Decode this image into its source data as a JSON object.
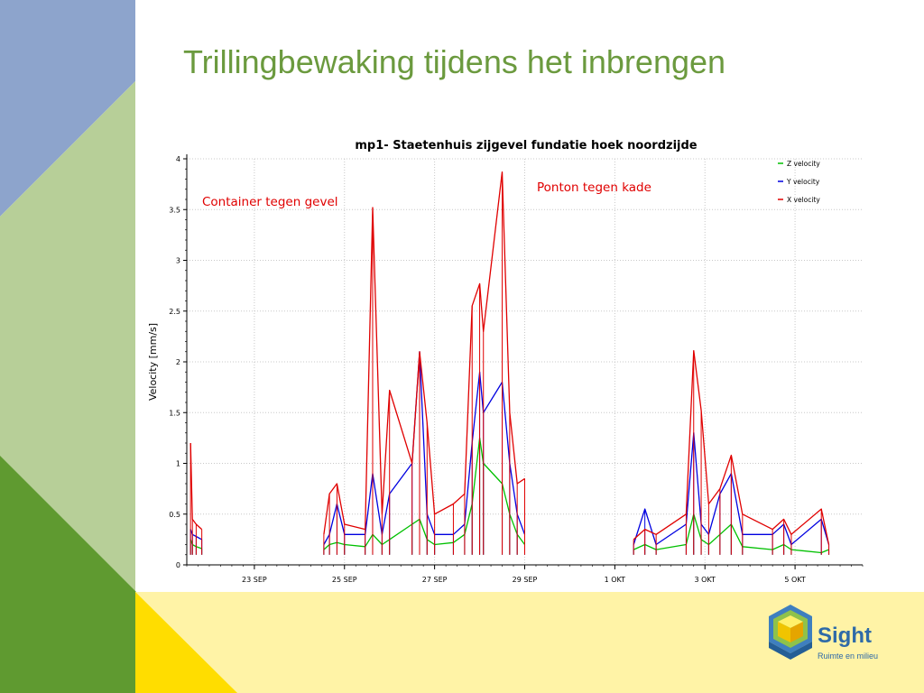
{
  "slide": {
    "title": "Trillingbewaking tijdens het inbrengen",
    "colors": {
      "title": "#6b9a3e",
      "blue": "#8da4cc",
      "lightgreen": "#b7cf98",
      "darkgreen": "#5f9a30",
      "yellow": "#fff3a6",
      "gold": "#ffdd00"
    }
  },
  "logo": {
    "name": "Sight",
    "tagline": "Ruimte en milieu",
    "icon": "hexagon-cube-logo-icon"
  },
  "chart_data": {
    "type": "line",
    "title": "mp1- Staetenhuis zijgevel fundatie hoek noordzijde",
    "xlabel": "",
    "ylabel": "Velocity [mm/s]",
    "ylim": [
      0,
      4
    ],
    "xlim": [
      "2010-09-21T12:00",
      "2010-10-06T12:00"
    ],
    "y_ticks": [
      "0",
      "0.5",
      "1",
      "1.5",
      "2",
      "2.5",
      "3",
      "3.5",
      "4"
    ],
    "x_ticks": [
      {
        "label": "23 SEP",
        "at": "2010-09-23"
      },
      {
        "label": "25 SEP",
        "at": "2010-09-25"
      },
      {
        "label": "27 SEP",
        "at": "2010-09-27"
      },
      {
        "label": "29 SEP",
        "at": "2010-09-29"
      },
      {
        "label": "1 OKT",
        "at": "2010-10-01"
      },
      {
        "label": "3 OKT",
        "at": "2010-10-03"
      },
      {
        "label": "5 OKT",
        "at": "2010-10-05"
      }
    ],
    "grid": true,
    "legend_position": "top-right",
    "annotations": [
      {
        "text": "Container tegen gevel",
        "color": "#e00000"
      },
      {
        "text": "Ponton tegen kade",
        "color": "#e00000"
      }
    ],
    "series": [
      {
        "name": "Z velocity",
        "color": "#00c000",
        "points": [
          [
            "2010-09-21T14:00",
            0.25
          ],
          [
            "2010-09-21T15:00",
            0.2
          ],
          [
            "2010-09-21T17:00",
            0.18
          ],
          [
            "2010-09-21T20:00",
            0.16
          ],
          [
            "2010-09-24T13:00",
            0.15
          ],
          [
            "2010-09-24T16:00",
            0.2
          ],
          [
            "2010-09-24T20:00",
            0.22
          ],
          [
            "2010-09-25T00:00",
            0.2
          ],
          [
            "2010-09-25T11:00",
            0.18
          ],
          [
            "2010-09-25T15:00",
            0.3
          ],
          [
            "2010-09-25T20:00",
            0.2
          ],
          [
            "2010-09-26T00:00",
            0.25
          ],
          [
            "2010-09-26T12:00",
            0.4
          ],
          [
            "2010-09-26T16:00",
            0.45
          ],
          [
            "2010-09-26T20:00",
            0.25
          ],
          [
            "2010-09-27T00:00",
            0.2
          ],
          [
            "2010-09-27T10:00",
            0.22
          ],
          [
            "2010-09-27T16:00",
            0.3
          ],
          [
            "2010-09-27T20:00",
            0.6
          ],
          [
            "2010-09-28T00:00",
            1.25
          ],
          [
            "2010-09-28T02:00",
            1.0
          ],
          [
            "2010-09-28T12:00",
            0.8
          ],
          [
            "2010-09-28T16:00",
            0.5
          ],
          [
            "2010-09-28T20:00",
            0.3
          ],
          [
            "2010-09-29T00:00",
            0.2
          ],
          [
            "2010-10-01T10:00",
            0.15
          ],
          [
            "2010-10-01T16:00",
            0.2
          ],
          [
            "2010-10-01T22:00",
            0.15
          ],
          [
            "2010-10-02T14:00",
            0.2
          ],
          [
            "2010-10-02T18:00",
            0.5
          ],
          [
            "2010-10-02T22:00",
            0.25
          ],
          [
            "2010-10-03T02:00",
            0.2
          ],
          [
            "2010-10-03T08:00",
            0.3
          ],
          [
            "2010-10-03T14:00",
            0.4
          ],
          [
            "2010-10-03T20:00",
            0.18
          ],
          [
            "2010-10-04T12:00",
            0.15
          ],
          [
            "2010-10-04T18:00",
            0.2
          ],
          [
            "2010-10-04T22:00",
            0.15
          ],
          [
            "2010-10-05T14:00",
            0.12
          ],
          [
            "2010-10-05T18:00",
            0.15
          ]
        ]
      },
      {
        "name": "Y velocity",
        "color": "#0000e0",
        "points": [
          [
            "2010-09-21T14:00",
            0.35
          ],
          [
            "2010-09-21T15:00",
            0.3
          ],
          [
            "2010-09-21T17:00",
            0.28
          ],
          [
            "2010-09-21T20:00",
            0.25
          ],
          [
            "2010-09-24T13:00",
            0.2
          ],
          [
            "2010-09-24T16:00",
            0.3
          ],
          [
            "2010-09-24T20:00",
            0.6
          ],
          [
            "2010-09-25T00:00",
            0.3
          ],
          [
            "2010-09-25T11:00",
            0.3
          ],
          [
            "2010-09-25T15:00",
            0.9
          ],
          [
            "2010-09-25T20:00",
            0.3
          ],
          [
            "2010-09-26T00:00",
            0.7
          ],
          [
            "2010-09-26T12:00",
            1.0
          ],
          [
            "2010-09-26T16:00",
            2.1
          ],
          [
            "2010-09-26T20:00",
            0.5
          ],
          [
            "2010-09-27T00:00",
            0.3
          ],
          [
            "2010-09-27T10:00",
            0.3
          ],
          [
            "2010-09-27T16:00",
            0.4
          ],
          [
            "2010-09-27T20:00",
            1.2
          ],
          [
            "2010-09-28T00:00",
            1.9
          ],
          [
            "2010-09-28T02:00",
            1.5
          ],
          [
            "2010-09-28T12:00",
            1.8
          ],
          [
            "2010-09-28T16:00",
            1.0
          ],
          [
            "2010-09-28T20:00",
            0.5
          ],
          [
            "2010-09-29T00:00",
            0.3
          ],
          [
            "2010-10-01T10:00",
            0.2
          ],
          [
            "2010-10-01T16:00",
            0.55
          ],
          [
            "2010-10-01T22:00",
            0.2
          ],
          [
            "2010-10-02T14:00",
            0.4
          ],
          [
            "2010-10-02T18:00",
            1.3
          ],
          [
            "2010-10-02T22:00",
            0.4
          ],
          [
            "2010-10-03T02:00",
            0.3
          ],
          [
            "2010-10-03T08:00",
            0.7
          ],
          [
            "2010-10-03T14:00",
            0.9
          ],
          [
            "2010-10-03T20:00",
            0.3
          ],
          [
            "2010-10-04T12:00",
            0.3
          ],
          [
            "2010-10-04T18:00",
            0.4
          ],
          [
            "2010-10-04T22:00",
            0.2
          ],
          [
            "2010-10-05T14:00",
            0.45
          ],
          [
            "2010-10-05T18:00",
            0.2
          ]
        ]
      },
      {
        "name": "X velocity",
        "color": "#e00000",
        "points": [
          [
            "2010-09-21T14:00",
            1.2
          ],
          [
            "2010-09-21T15:00",
            0.45
          ],
          [
            "2010-09-21T17:00",
            0.4
          ],
          [
            "2010-09-21T20:00",
            0.35
          ],
          [
            "2010-09-24T13:00",
            0.3
          ],
          [
            "2010-09-24T16:00",
            0.7
          ],
          [
            "2010-09-24T20:00",
            0.8
          ],
          [
            "2010-09-25T00:00",
            0.4
          ],
          [
            "2010-09-25T11:00",
            0.35
          ],
          [
            "2010-09-25T15:00",
            3.52
          ],
          [
            "2010-09-25T20:00",
            0.5
          ],
          [
            "2010-09-26T00:00",
            1.72
          ],
          [
            "2010-09-26T12:00",
            1.0
          ],
          [
            "2010-09-26T16:00",
            2.1
          ],
          [
            "2010-09-26T20:00",
            1.4
          ],
          [
            "2010-09-27T00:00",
            0.5
          ],
          [
            "2010-09-27T10:00",
            0.6
          ],
          [
            "2010-09-27T16:00",
            0.7
          ],
          [
            "2010-09-27T20:00",
            2.55
          ],
          [
            "2010-09-28T00:00",
            2.77
          ],
          [
            "2010-09-28T02:00",
            2.3
          ],
          [
            "2010-09-28T12:00",
            3.87
          ],
          [
            "2010-09-28T16:00",
            1.5
          ],
          [
            "2010-09-28T20:00",
            0.8
          ],
          [
            "2010-09-29T00:00",
            0.85
          ],
          [
            "2010-10-01T10:00",
            0.25
          ],
          [
            "2010-10-01T16:00",
            0.35
          ],
          [
            "2010-10-01T22:00",
            0.3
          ],
          [
            "2010-10-02T14:00",
            0.5
          ],
          [
            "2010-10-02T18:00",
            2.11
          ],
          [
            "2010-10-02T22:00",
            1.52
          ],
          [
            "2010-10-03T02:00",
            0.6
          ],
          [
            "2010-10-03T08:00",
            0.75
          ],
          [
            "2010-10-03T14:00",
            1.08
          ],
          [
            "2010-10-03T20:00",
            0.5
          ],
          [
            "2010-10-04T12:00",
            0.35
          ],
          [
            "2010-10-04T18:00",
            0.45
          ],
          [
            "2010-10-04T22:00",
            0.3
          ],
          [
            "2010-10-05T14:00",
            0.55
          ],
          [
            "2010-10-05T18:00",
            0.2
          ]
        ]
      }
    ]
  }
}
